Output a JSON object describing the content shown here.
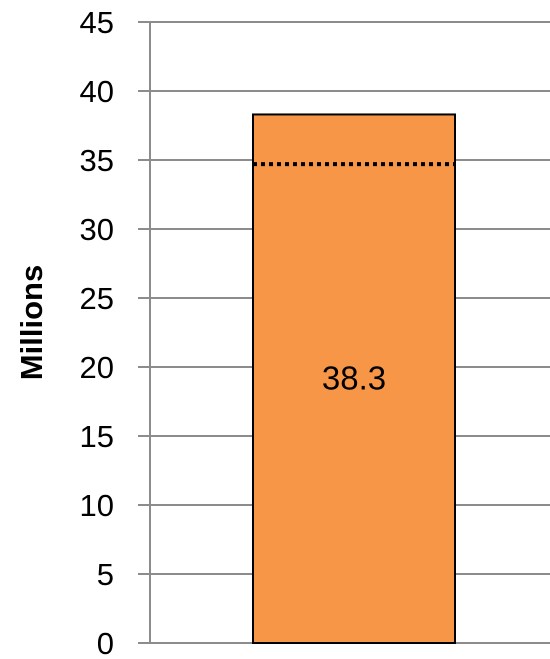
{
  "chart_data": {
    "type": "bar",
    "categories": [
      ""
    ],
    "values": [
      38.3
    ],
    "data_labels": [
      "38.3"
    ],
    "reference_line": {
      "value": 34.7,
      "style": "dotted"
    },
    "title": "",
    "xlabel": "",
    "ylabel": "Millions",
    "ylim": [
      0,
      45
    ],
    "yticks": [
      0,
      5,
      10,
      15,
      20,
      25,
      30,
      35,
      40,
      45
    ],
    "grid": true,
    "legend": "none",
    "colors": {
      "bar_fill": "#F79646",
      "bar_edge": "#000000",
      "grid": "#8C8C8C",
      "axis": "#8C8C8C",
      "reference_line": "#000000"
    }
  }
}
